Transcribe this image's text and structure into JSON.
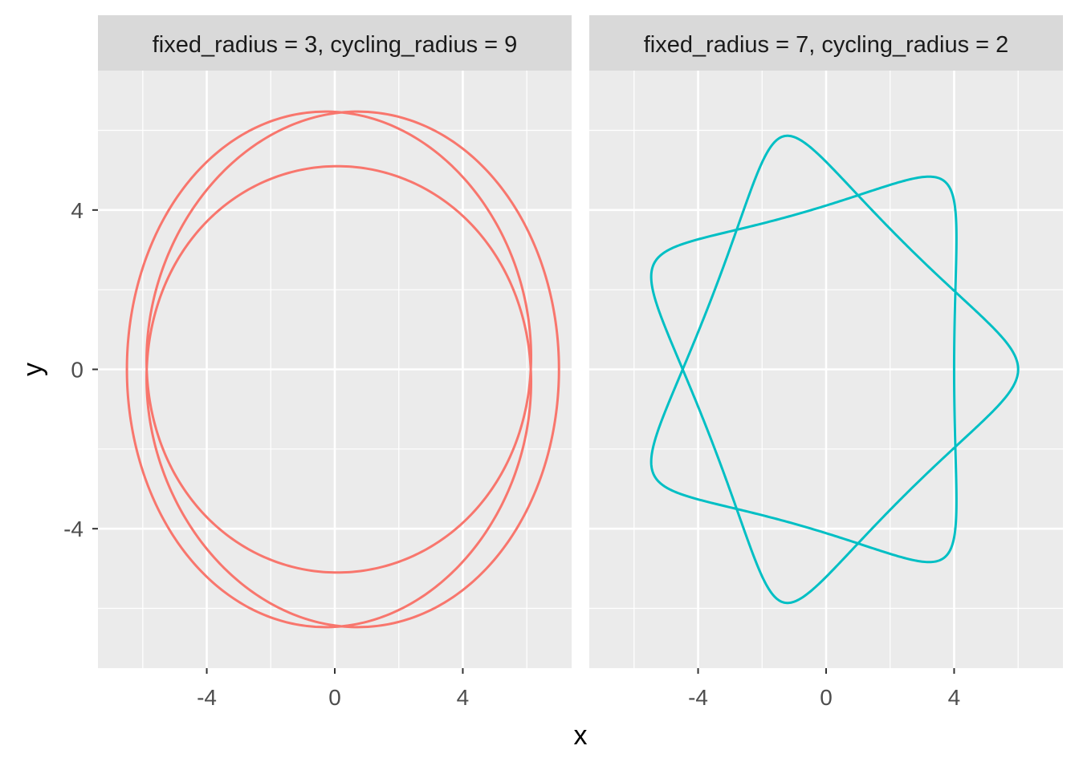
{
  "chart_data": {
    "type": "line",
    "xlabel": "x",
    "ylabel": "y",
    "xlim": [
      -7.4,
      7.4
    ],
    "ylim": [
      -7.5,
      7.5
    ],
    "x_ticks": [
      -4,
      0,
      4
    ],
    "x_tick_labels": [
      "-4",
      "0",
      "4"
    ],
    "y_ticks": [
      -4,
      0,
      4
    ],
    "y_tick_labels": [
      "-4",
      "0",
      "4"
    ],
    "grid": true,
    "facets": [
      {
        "strip_label": "fixed_radius = 3, cycling_radius = 9",
        "fixed_radius": 3,
        "cycling_radius": 9,
        "color": "#F8766D",
        "shape": "triple-loop spirograph; x range approx -6.5 to 7.0, outer loop y approx ±6.9, inner loop y approx ±5.1"
      },
      {
        "strip_label": "fixed_radius = 7, cycling_radius = 2",
        "fixed_radius": 7,
        "cycling_radius": 2,
        "color": "#00BFC4",
        "shape": "seven-point star spirograph; x range approx -5.5 to 6.0, y approx ±5.9"
      }
    ]
  }
}
